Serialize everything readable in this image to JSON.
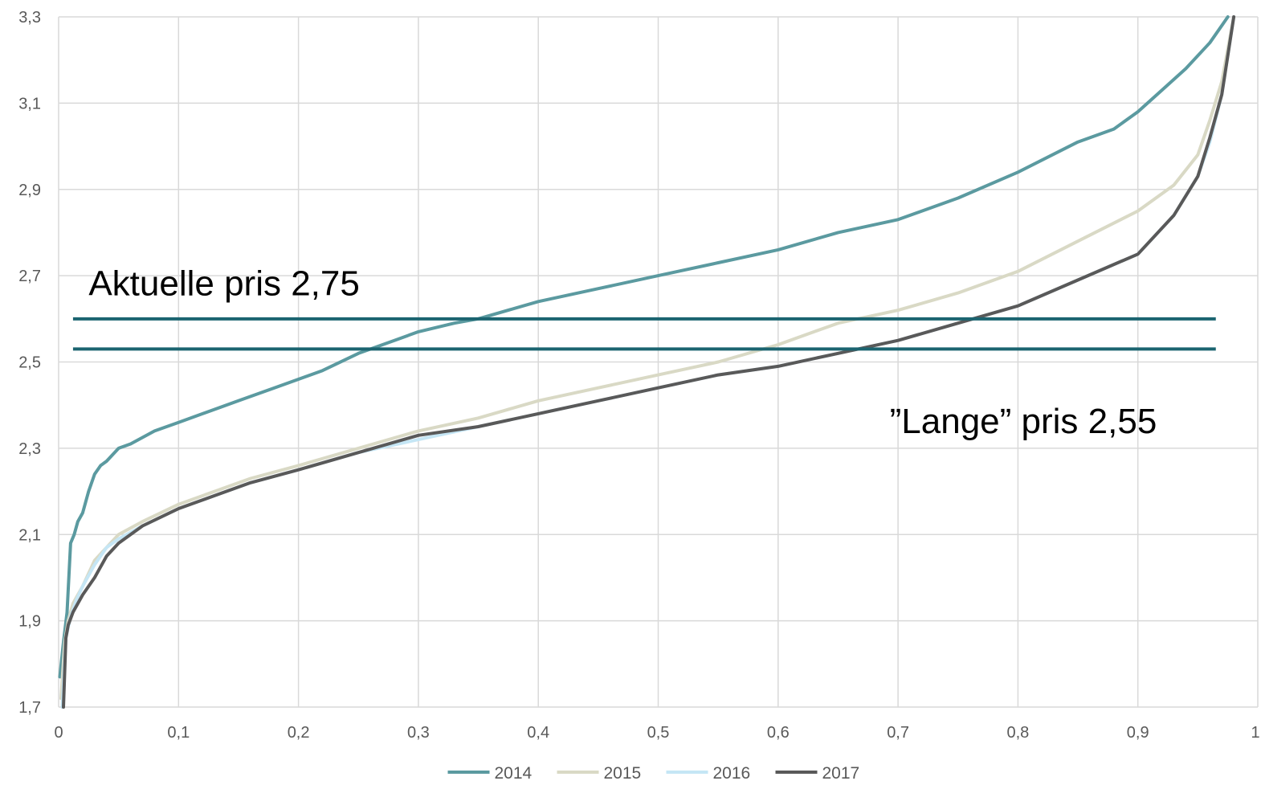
{
  "chart_data": {
    "type": "line",
    "xlim": [
      0,
      1
    ],
    "ylim": [
      1.7,
      3.3
    ],
    "grid": true,
    "legend_position": "bottom",
    "x_tick_labels": [
      "0",
      "0,1",
      "0,2",
      "0,3",
      "0,4",
      "0,5",
      "0,6",
      "0,7",
      "0,8",
      "0,9",
      "1"
    ],
    "y_tick_labels": [
      "1,7",
      "1,9",
      "2,1",
      "2,3",
      "2,5",
      "2,7",
      "2,9",
      "3,1",
      "3,3"
    ],
    "series": [
      {
        "name": "2014",
        "color": "#5b9aa0",
        "x": [
          0.001,
          0.004,
          0.007,
          0.01,
          0.013,
          0.016,
          0.02,
          0.025,
          0.03,
          0.035,
          0.04,
          0.05,
          0.06,
          0.08,
          0.1,
          0.12,
          0.15,
          0.18,
          0.2,
          0.22,
          0.25,
          0.28,
          0.3,
          0.33,
          0.35,
          0.4,
          0.45,
          0.5,
          0.55,
          0.6,
          0.65,
          0.7,
          0.75,
          0.8,
          0.85,
          0.88,
          0.9,
          0.92,
          0.94,
          0.96,
          0.975
        ],
        "y": [
          1.77,
          1.85,
          1.92,
          2.08,
          2.1,
          2.13,
          2.15,
          2.2,
          2.24,
          2.26,
          2.27,
          2.3,
          2.31,
          2.34,
          2.36,
          2.38,
          2.41,
          2.44,
          2.46,
          2.48,
          2.52,
          2.55,
          2.57,
          2.59,
          2.6,
          2.64,
          2.67,
          2.7,
          2.73,
          2.76,
          2.8,
          2.83,
          2.88,
          2.94,
          3.01,
          3.04,
          3.08,
          3.13,
          3.18,
          3.24,
          3.3
        ]
      },
      {
        "name": "2015",
        "color": "#d9d9c5",
        "x": [
          0.002,
          0.005,
          0.008,
          0.012,
          0.02,
          0.03,
          0.04,
          0.05,
          0.07,
          0.1,
          0.13,
          0.16,
          0.2,
          0.25,
          0.3,
          0.35,
          0.4,
          0.45,
          0.5,
          0.55,
          0.6,
          0.63,
          0.65,
          0.7,
          0.75,
          0.8,
          0.85,
          0.9,
          0.93,
          0.95,
          0.96,
          0.97,
          0.98
        ],
        "y": [
          1.72,
          1.85,
          1.9,
          1.94,
          1.98,
          2.04,
          2.07,
          2.1,
          2.13,
          2.17,
          2.2,
          2.23,
          2.26,
          2.3,
          2.34,
          2.37,
          2.41,
          2.44,
          2.47,
          2.5,
          2.54,
          2.57,
          2.59,
          2.62,
          2.66,
          2.71,
          2.78,
          2.85,
          2.91,
          2.98,
          3.06,
          3.15,
          3.3
        ]
      },
      {
        "name": "2016",
        "color": "#c5e6f5",
        "x": [
          0.003,
          0.006,
          0.01,
          0.015,
          0.02,
          0.03,
          0.04,
          0.05,
          0.07,
          0.1,
          0.13,
          0.16,
          0.2,
          0.25,
          0.3,
          0.35,
          0.4,
          0.45,
          0.5,
          0.55,
          0.6,
          0.65,
          0.7,
          0.75,
          0.8,
          0.85,
          0.9,
          0.93,
          0.95,
          0.96,
          0.97,
          0.98
        ],
        "y": [
          1.7,
          1.86,
          1.91,
          1.95,
          1.98,
          2.03,
          2.07,
          2.09,
          2.12,
          2.16,
          2.19,
          2.22,
          2.25,
          2.29,
          2.32,
          2.35,
          2.38,
          2.41,
          2.44,
          2.47,
          2.49,
          2.52,
          2.55,
          2.59,
          2.63,
          2.69,
          2.75,
          2.84,
          2.93,
          3.01,
          3.12,
          3.3
        ]
      },
      {
        "name": "2017",
        "color": "#595959",
        "x": [
          0.004,
          0.006,
          0.008,
          0.012,
          0.02,
          0.03,
          0.04,
          0.05,
          0.07,
          0.1,
          0.13,
          0.16,
          0.2,
          0.25,
          0.3,
          0.35,
          0.4,
          0.45,
          0.5,
          0.55,
          0.6,
          0.65,
          0.7,
          0.75,
          0.8,
          0.85,
          0.9,
          0.93,
          0.95,
          0.96,
          0.97,
          0.98
        ],
        "y": [
          1.7,
          1.86,
          1.89,
          1.92,
          1.96,
          2.0,
          2.05,
          2.08,
          2.12,
          2.16,
          2.19,
          2.22,
          2.25,
          2.29,
          2.33,
          2.35,
          2.38,
          2.41,
          2.44,
          2.47,
          2.49,
          2.52,
          2.55,
          2.59,
          2.63,
          2.69,
          2.75,
          2.84,
          2.93,
          3.02,
          3.12,
          3.3
        ]
      }
    ],
    "reference_lines": [
      {
        "y": 2.6,
        "x_start": 0.012,
        "x_end": 0.965,
        "color": "#1b6470"
      },
      {
        "y": 2.53,
        "x_start": 0.012,
        "x_end": 0.965,
        "color": "#1b6470"
      }
    ],
    "annotations": [
      {
        "text": "Aktuelle pris 2,75",
        "x": 0.025,
        "y": 2.655
      },
      {
        "text": "”Lange” pris 2,55",
        "x": 0.693,
        "y": 2.335
      }
    ]
  }
}
